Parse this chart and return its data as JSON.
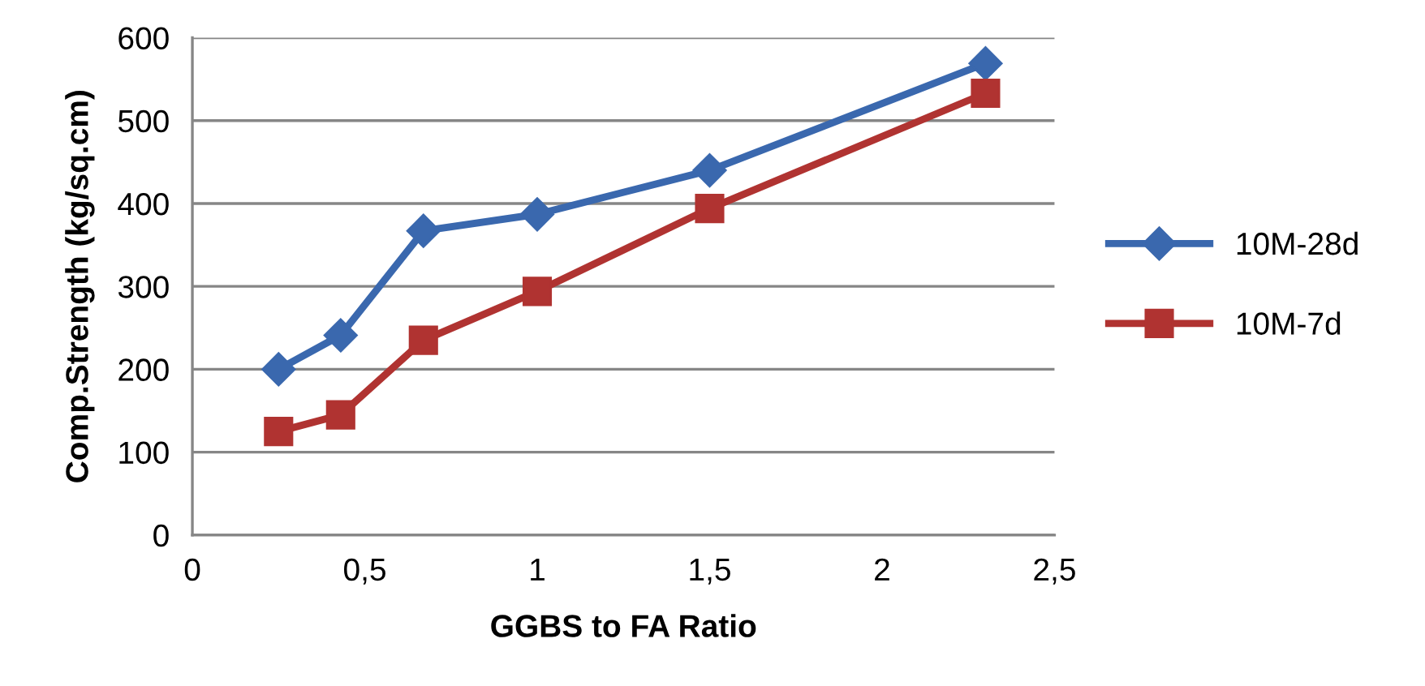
{
  "chart_data": {
    "type": "line",
    "xlabel": "GGBS to FA Ratio",
    "ylabel": "Comp.Strength (kg/sq.cm)",
    "x": [
      0.25,
      0.43,
      0.67,
      1,
      1.5,
      2.3
    ],
    "series": [
      {
        "name": "10M-28d",
        "color": "#3a68ae",
        "marker": "diamond",
        "values": [
          200,
          241,
          367,
          387,
          440,
          569
        ]
      },
      {
        "name": "10M-7d",
        "color": "#b03331",
        "marker": "square",
        "values": [
          125,
          145,
          235,
          294,
          394,
          533
        ]
      }
    ],
    "xlim": [
      0,
      2.5
    ],
    "ylim": [
      0,
      600
    ],
    "xticks": [
      0,
      {
        "value": 0.5,
        "label": "0,5"
      },
      1,
      {
        "value": 1.5,
        "label": "1,5"
      },
      2,
      {
        "value": 2.5,
        "label": "2,5"
      }
    ],
    "yticks": [
      0,
      100,
      200,
      300,
      400,
      500,
      600
    ],
    "grid": "y",
    "legend": "right",
    "line_style": "solid"
  }
}
